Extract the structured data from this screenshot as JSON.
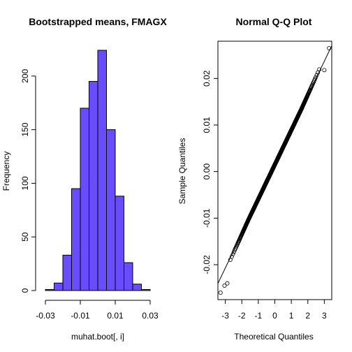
{
  "chart_data": [
    {
      "type": "bar",
      "subtype": "histogram",
      "title": "Bootstrapped means, FMAGX",
      "xlabel": "muhat.boot[, i]",
      "ylabel": "Frequency",
      "bar_color": "#6a4cff",
      "bins": [
        {
          "start": -0.03,
          "end": -0.025,
          "count": 1
        },
        {
          "start": -0.025,
          "end": -0.02,
          "count": 7
        },
        {
          "start": -0.02,
          "end": -0.015,
          "count": 33
        },
        {
          "start": -0.015,
          "end": -0.01,
          "count": 95
        },
        {
          "start": -0.01,
          "end": -0.005,
          "count": 170
        },
        {
          "start": -0.005,
          "end": 0.0,
          "count": 195
        },
        {
          "start": 0.0,
          "end": 0.005,
          "count": 224
        },
        {
          "start": 0.005,
          "end": 0.01,
          "count": 150
        },
        {
          "start": 0.01,
          "end": 0.015,
          "count": 88
        },
        {
          "start": 0.015,
          "end": 0.02,
          "count": 26
        },
        {
          "start": 0.02,
          "end": 0.025,
          "count": 6
        },
        {
          "start": 0.025,
          "end": 0.03,
          "count": 1
        }
      ],
      "xlim": [
        -0.03,
        0.03
      ],
      "ylim": [
        0,
        224
      ],
      "xticks": [
        -0.03,
        -0.01,
        0.01,
        0.03
      ],
      "xtick_labels": [
        "-0.03",
        "-0.01",
        "0.01",
        "0.03"
      ],
      "yticks": [
        0,
        50,
        100,
        150,
        200
      ],
      "ytick_labels": [
        "0",
        "50",
        "100",
        "150",
        "200"
      ]
    },
    {
      "type": "scatter",
      "subtype": "qq-plot",
      "title": "Normal Q-Q Plot",
      "xlabel": "Theoretical Quantiles",
      "ylabel": "Sample Quantiles",
      "xlim": [
        -3.45,
        3.45
      ],
      "ylim": [
        -0.0275,
        0.028
      ],
      "xticks": [
        -3,
        -2,
        -1,
        0,
        1,
        2,
        3
      ],
      "xtick_labels": [
        "-3",
        "-2",
        "-1",
        "0",
        "1",
        "2",
        "3"
      ],
      "yticks": [
        -0.02,
        -0.01,
        0.0,
        0.01,
        0.02
      ],
      "ytick_labels": [
        "-0.02",
        "-0.01",
        "0.00",
        "0.01",
        "0.02"
      ],
      "n_points": 1000,
      "mean": 0.0015,
      "sd": 0.0074,
      "reference_line": {
        "intercept": 0.0015,
        "slope": 0.0074
      },
      "outliers": [
        {
          "x": -3.29,
          "y": -0.026
        },
        {
          "x": -3.05,
          "y": -0.0245
        },
        {
          "x": -2.88,
          "y": -0.024
        },
        {
          "x": 3.29,
          "y": 0.0265
        },
        {
          "x": 3.0,
          "y": 0.0218
        }
      ]
    }
  ]
}
